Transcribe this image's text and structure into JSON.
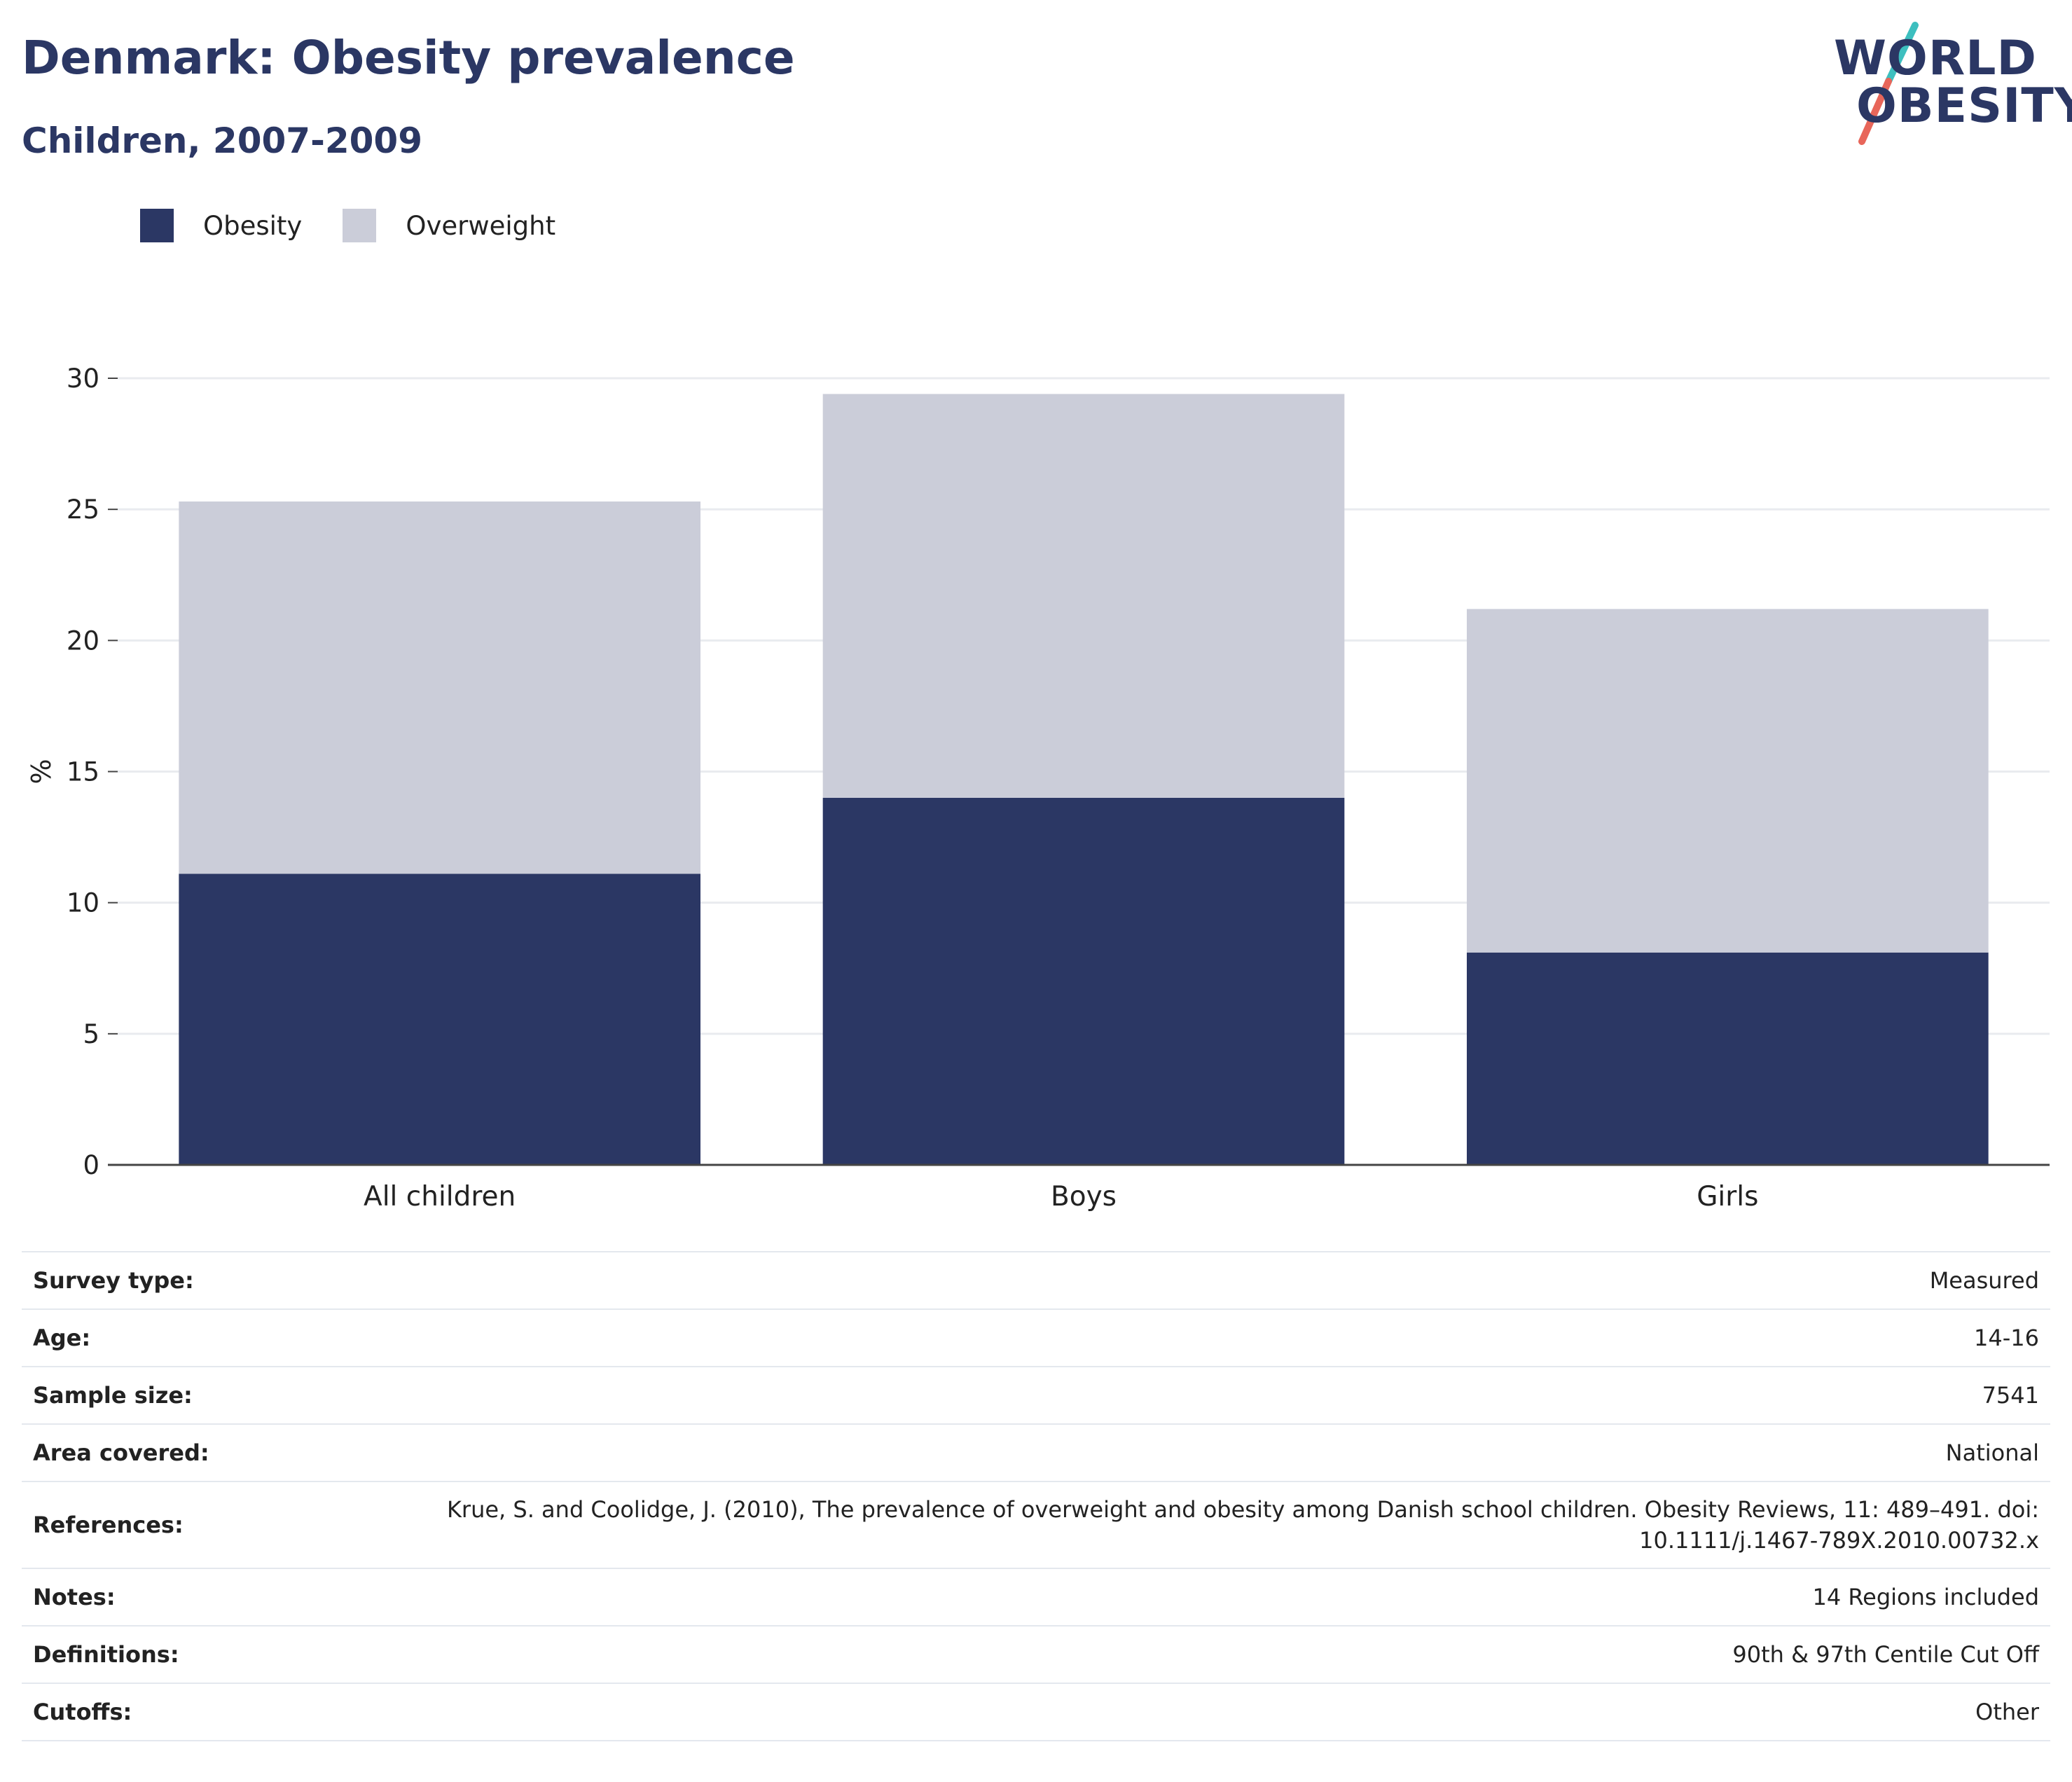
{
  "header": {
    "title": "Denmark: Obesity prevalence",
    "subtitle": "Children, 2007-2009"
  },
  "logo": {
    "line1": "WORLD",
    "line2": "OBESITY",
    "text_color": "#2b3764",
    "slash_colors": [
      "#3dbfbf",
      "#e8665a"
    ]
  },
  "colors": {
    "obesity": "#2b3764",
    "overweight": "#cbcdd9",
    "text": "#2b3764"
  },
  "chart_data": {
    "type": "bar",
    "stacked": true,
    "categories": [
      "All children",
      "Boys",
      "Girls"
    ],
    "series": [
      {
        "name": "Obesity",
        "values": [
          11.1,
          14.0,
          8.1
        ],
        "color": "#2b3764"
      },
      {
        "name": "Overweight",
        "values": [
          14.2,
          15.4,
          13.1
        ],
        "color": "#cbcdd9"
      }
    ],
    "ylabel": "%",
    "ylim": [
      0,
      30
    ],
    "yticks": [
      0,
      5,
      10,
      15,
      20,
      25,
      30
    ],
    "grid": true,
    "legend": "top-left"
  },
  "meta": [
    {
      "key": "Survey type:",
      "value": "Measured"
    },
    {
      "key": "Age:",
      "value": "14-16"
    },
    {
      "key": "Sample size:",
      "value": "7541"
    },
    {
      "key": "Area covered:",
      "value": "National"
    },
    {
      "key": "References:",
      "value": "Krue, S. and Coolidge, J. (2010), The prevalence of overweight and obesity among Danish school children. Obesity Reviews, 11: 489–491. doi: 10.1111/j.1467-789X.2010.00732.x"
    },
    {
      "key": "Notes:",
      "value": "14 Regions included"
    },
    {
      "key": "Definitions:",
      "value": "90th & 97th Centile Cut Off"
    },
    {
      "key": "Cutoffs:",
      "value": "Other"
    }
  ]
}
